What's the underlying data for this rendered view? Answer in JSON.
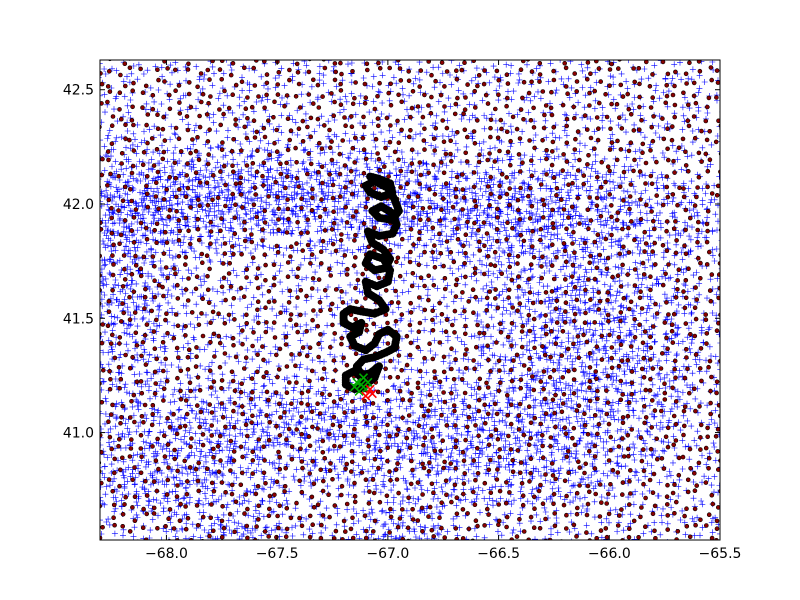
{
  "chart_data": {
    "type": "scatter",
    "title": "",
    "xlabel": "",
    "ylabel": "",
    "xlim": [
      -68.3,
      -65.5
    ],
    "ylim": [
      40.53,
      42.63
    ],
    "grid": false,
    "x_ticks": [
      -68.0,
      -67.5,
      -67.0,
      -66.5,
      -66.0,
      -65.5
    ],
    "x_tick_labels": [
      "−68.0",
      "−67.5",
      "−67.0",
      "−66.5",
      "−66.0",
      "−65.5"
    ],
    "y_ticks": [
      41.0,
      41.5,
      42.0,
      42.5
    ],
    "y_tick_labels": [
      "41.0",
      "41.5",
      "42.0",
      "42.5"
    ],
    "series": [
      {
        "marker": "plus",
        "color": "#0000ff",
        "description_type": "model grid nodes (dense mesh)",
        "dense_regions": [
          {
            "x": -67.9,
            "y": 42.0,
            "sx": 0.45,
            "sy": 0.12
          },
          {
            "x": -67.3,
            "y": 42.05,
            "sx": 0.6,
            "sy": 0.1
          },
          {
            "x": -66.4,
            "y": 41.95,
            "sx": 0.5,
            "sy": 0.12
          },
          {
            "x": -68.2,
            "y": 41.7,
            "sx": 0.15,
            "sy": 0.3
          },
          {
            "x": -66.1,
            "y": 41.4,
            "sx": 0.3,
            "sy": 0.3
          },
          {
            "x": -66.6,
            "y": 40.95,
            "sx": 0.4,
            "sy": 0.15
          },
          {
            "x": -67.6,
            "y": 41.05,
            "sx": 0.4,
            "sy": 0.1
          },
          {
            "x": -68.0,
            "y": 40.8,
            "sx": 0.3,
            "sy": 0.1
          },
          {
            "x": -66.95,
            "y": 40.58,
            "sx": 0.12,
            "sy": 0.05
          },
          {
            "x": -67.7,
            "y": 40.58,
            "sx": 0.15,
            "sy": 0.04
          }
        ]
      },
      {
        "marker": "dot",
        "color": "#8b0000",
        "edge": "#000000",
        "description_type": "cell centers"
      },
      {
        "marker": "filled-circle",
        "color": "#000000",
        "description_type": "drifter track",
        "points": [
          [
            -67.08,
            42.12
          ],
          [
            -67.04,
            42.11
          ],
          [
            -66.99,
            42.09
          ],
          [
            -66.98,
            42.05
          ],
          [
            -67.03,
            42.03
          ],
          [
            -67.08,
            42.05
          ],
          [
            -67.1,
            42.08
          ],
          [
            -67.06,
            42.1
          ],
          [
            -67.0,
            42.07
          ],
          [
            -66.97,
            42.02
          ],
          [
            -66.95,
            41.97
          ],
          [
            -66.98,
            41.93
          ],
          [
            -67.04,
            41.94
          ],
          [
            -67.07,
            41.97
          ],
          [
            -67.03,
            41.99
          ],
          [
            -66.98,
            41.96
          ],
          [
            -66.96,
            41.91
          ],
          [
            -66.98,
            41.87
          ],
          [
            -67.04,
            41.86
          ],
          [
            -67.09,
            41.88
          ],
          [
            -67.07,
            41.83
          ],
          [
            -67.02,
            41.8
          ],
          [
            -66.99,
            41.76
          ],
          [
            -67.01,
            41.72
          ],
          [
            -67.06,
            41.71
          ],
          [
            -67.1,
            41.74
          ],
          [
            -67.08,
            41.78
          ],
          [
            -67.02,
            41.76
          ],
          [
            -66.99,
            41.71
          ],
          [
            -67.0,
            41.66
          ],
          [
            -67.05,
            41.64
          ],
          [
            -67.1,
            41.66
          ],
          [
            -67.09,
            41.61
          ],
          [
            -67.04,
            41.58
          ],
          [
            -67.01,
            41.54
          ],
          [
            -67.06,
            41.52
          ],
          [
            -67.12,
            41.53
          ],
          [
            -67.17,
            41.54
          ],
          [
            -67.2,
            41.52
          ],
          [
            -67.2,
            41.48
          ],
          [
            -67.16,
            41.46
          ],
          [
            -67.12,
            41.48
          ],
          [
            -67.13,
            41.44
          ],
          [
            -67.17,
            41.42
          ],
          [
            -67.15,
            41.38
          ],
          [
            -67.1,
            41.36
          ],
          [
            -67.06,
            41.39
          ],
          [
            -67.04,
            41.43
          ],
          [
            -67.0,
            41.45
          ],
          [
            -66.96,
            41.42
          ],
          [
            -66.97,
            41.37
          ],
          [
            -67.01,
            41.35
          ],
          [
            -67.06,
            41.33
          ],
          [
            -67.11,
            41.32
          ],
          [
            -67.14,
            41.29
          ],
          [
            -67.12,
            41.25
          ],
          [
            -67.08,
            41.26
          ],
          [
            -67.04,
            41.29
          ],
          [
            -67.06,
            41.24
          ],
          [
            -67.1,
            41.21
          ],
          [
            -67.15,
            41.19
          ],
          [
            -67.19,
            41.21
          ],
          [
            -67.19,
            41.25
          ],
          [
            -67.15,
            41.27
          ],
          [
            -67.11,
            41.23
          ],
          [
            -67.13,
            41.19
          ]
        ]
      },
      {
        "marker": "x",
        "color": "#00aa00",
        "description_type": "start cluster",
        "points": [
          [
            -67.12,
            41.21
          ],
          [
            -67.1,
            41.19
          ],
          [
            -67.14,
            41.22
          ],
          [
            -67.11,
            41.24
          ],
          [
            -67.15,
            41.2
          ],
          [
            -67.09,
            41.22
          ],
          [
            -67.13,
            41.18
          ]
        ]
      },
      {
        "marker": "x",
        "color": "#ff0000",
        "description_type": "end cluster",
        "points": [
          [
            -67.07,
            41.17
          ],
          [
            -67.1,
            41.16
          ],
          [
            -67.08,
            41.19
          ]
        ]
      }
    ]
  }
}
